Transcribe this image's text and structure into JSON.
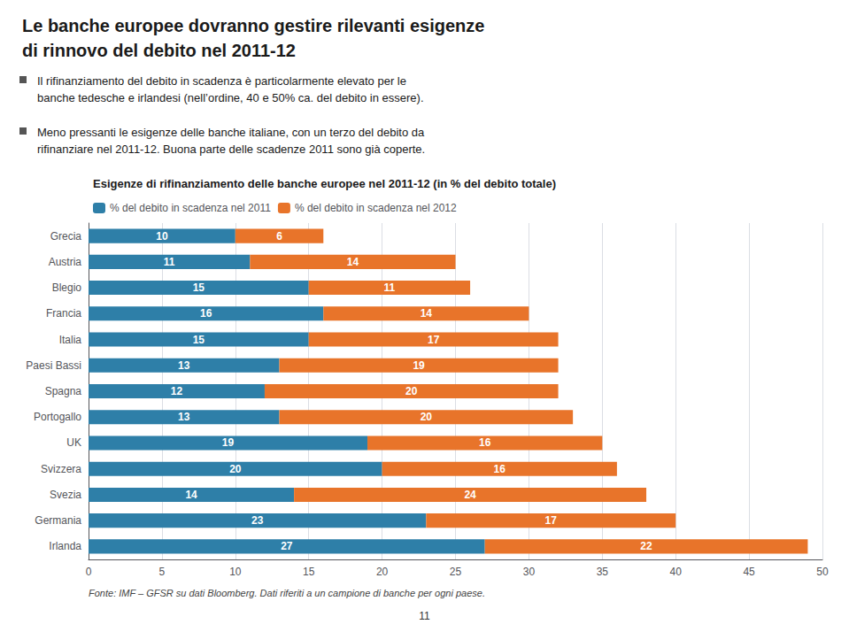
{
  "chart_data": {
    "type": "bar",
    "orientation": "horizontal",
    "stacked": true,
    "title": "Le banche europee dovranno gestire rilevanti esigenze\ndi rinnovo del debito nel 2011-12",
    "subtitle": "Esigenze di rifinanziamento delle banche europee nel 2011-12 (in % del debito totale)",
    "annotations": [
      "Il rifinanziamento del debito in scadenza è particolarmente elevato per le\nbanche tedesche e irlandesi (nell’ordine, 40 e 50% ca. del debito in essere).",
      "Meno pressanti le esigenze delle banche italiane, con un terzo del debito da\nrifinanziare nel 2011-12. Buona parte delle scadenze 2011 sono già coperte.",
      "Fonte: IMF – GFSR su dati Bloomberg. Dati riferiti a un campione di banche per ogni paese.",
      "11"
    ],
    "categories": [
      "Grecia",
      "Austria",
      "Blegio",
      "Francia",
      "Italia",
      "Paesi Bassi",
      "Spagna",
      "Portogallo",
      "UK",
      "Svizzera",
      "Svezia",
      "Germania",
      "Irlanda"
    ],
    "series": [
      {
        "name": "% del debito in scadenza nel 2011",
        "color": "#2E7FA8",
        "values": [
          10,
          11,
          15,
          16,
          15,
          13,
          12,
          13,
          19,
          20,
          14,
          23,
          27
        ]
      },
      {
        "name": "% del debito in scadenza nel 2012",
        "color": "#E8742A",
        "values": [
          6,
          14,
          11,
          14,
          17,
          19,
          20,
          20,
          16,
          16,
          24,
          17,
          22
        ]
      }
    ],
    "xlim": [
      0,
      50
    ],
    "xticks": [
      0,
      5,
      10,
      15,
      20,
      25,
      30,
      35,
      40,
      45,
      50
    ],
    "grid": true,
    "data_labels": true,
    "legend": "top"
  }
}
